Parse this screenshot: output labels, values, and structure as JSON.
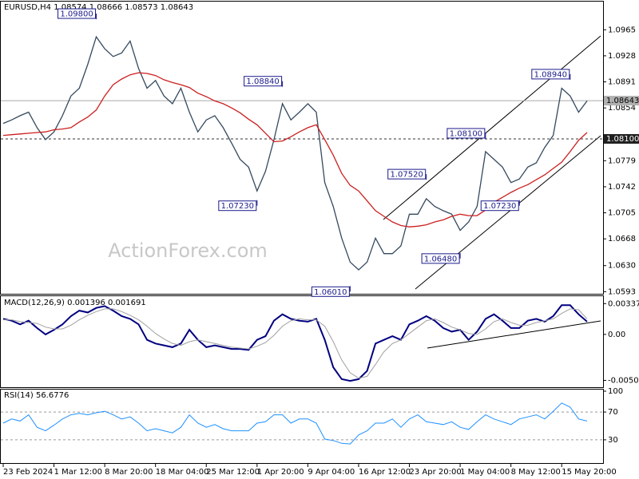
{
  "chart_data": [
    {
      "type": "line",
      "title": "EURUSD,H4 1.08574 1.08666 1.08573 1.08643",
      "watermark": "ActionForex.com",
      "ylim": [
        1.059,
        1.1005
      ],
      "yticks": [
        1.0965,
        1.0928,
        1.0891,
        1.0854,
        1.0779,
        1.0742,
        1.0705,
        1.0668,
        {
          "value": 1.063,
          "label": "1.0630"
        },
        1.0593
      ],
      "series": [
        {
          "color": "#34495e",
          "values": [
            1.0832,
            1.0837,
            1.0843,
            1.0848,
            1.0826,
            1.0809,
            1.082,
            1.0843,
            1.0871,
            1.0882,
            1.0916,
            1.0955,
            1.0938,
            1.0927,
            1.0932,
            1.0949,
            1.091,
            1.0882,
            1.0893,
            1.0871,
            1.086,
            1.0882,
            1.0848,
            1.082,
            1.0837,
            1.0843,
            1.0826,
            1.0804,
            1.0781,
            1.077,
            1.0736,
            1.0764,
            1.0809,
            1.086,
            1.0837,
            1.0848,
            1.086,
            1.0848,
            1.0748,
            1.0714,
            1.0669,
            1.0635,
            1.0624,
            1.0635,
            1.0669,
            1.0647,
            1.0647,
            1.0658,
            1.0703,
            1.0703,
            1.0725,
            1.0714,
            1.0708,
            1.0703,
            1.068,
            1.0692,
            1.0714,
            1.0792,
            1.0781,
            1.077,
            1.0748,
            1.0753,
            1.077,
            1.0776,
            1.0798,
            1.0815,
            1.0882,
            1.0871,
            1.0848,
            1.0864
          ]
        },
        {
          "color": "#cc1f1f",
          "values": [
            1.0815,
            1.0816,
            1.0817,
            1.0818,
            1.0819,
            1.082,
            1.0823,
            1.0824,
            1.0826,
            1.0834,
            1.0841,
            1.0851,
            1.0871,
            1.0887,
            1.0895,
            1.0901,
            1.0904,
            1.0903,
            1.09,
            1.0894,
            1.089,
            1.0887,
            1.0883,
            1.0875,
            1.087,
            1.0864,
            1.086,
            1.0854,
            1.0847,
            1.0838,
            1.083,
            1.0818,
            1.0806,
            1.0807,
            1.0813,
            1.082,
            1.0826,
            1.083,
            1.0809,
            1.0787,
            1.0761,
            1.0744,
            1.0736,
            1.0722,
            1.0708,
            1.07,
            1.0692,
            1.0687,
            1.0685,
            1.0686,
            1.0688,
            1.0692,
            1.0695,
            1.07,
            1.0703,
            1.0701,
            1.0701,
            1.0709,
            1.072,
            1.0727,
            1.0734,
            1.074,
            1.0745,
            1.0752,
            1.0759,
            1.0768,
            1.0777,
            1.0792,
            1.0808,
            1.0819
          ]
        }
      ],
      "annotations": [
        {
          "label": "1.09800",
          "value": 1.098,
          "index": 11
        },
        {
          "label": "1.08840",
          "value": 1.0884,
          "index": 33
        },
        {
          "label": "1.07230",
          "value": 1.0723,
          "index": 30
        },
        {
          "label": "1.06010",
          "value": 1.0601,
          "index": 41
        },
        {
          "label": "1.07520",
          "value": 1.0752,
          "index": 50
        },
        {
          "label": "1.06480",
          "value": 1.0648,
          "index": 54
        },
        {
          "label": "1.08100",
          "value": 1.081,
          "index": 57
        },
        {
          "label": "1.07230",
          "value": 1.0723,
          "index": 61
        },
        {
          "label": "1.08940",
          "value": 1.0894,
          "index": 67
        }
      ],
      "levels": [
        {
          "value": 1.08643,
          "label": "1.08643",
          "line": "solid",
          "color": "#b0b0b0"
        },
        {
          "value": 1.081,
          "label": "1.08100",
          "line": "dashed",
          "color": "#202020"
        }
      ]
    },
    {
      "type": "line",
      "title": "MACD(12,26,9) 0.001396 0.001691",
      "ylim": [
        -0.0057,
        0.0041
      ],
      "yticks": [
        0.003375,
        {
          "value": 0,
          "label": "0.00"
        },
        -0.00504
      ],
      "series": [
        {
          "color": "#000080",
          "width": 2,
          "values": [
            0.0017,
            0.0015,
            0.0011,
            0.0015,
            0.0007,
            0,
            0.0005,
            0.0011,
            0.002,
            0.0026,
            0.0024,
            0.0029,
            0.0031,
            0.0026,
            0.002,
            0.0017,
            0.0011,
            -0.0006,
            -0.001,
            -0.0012,
            -0.0014,
            -0.001,
            0.0005,
            -0.0006,
            -0.0014,
            -0.0012,
            -0.0014,
            -0.0016,
            -0.0016,
            -0.0017,
            -0.0006,
            -0.0002,
            0.0015,
            0.0022,
            0.0017,
            0.0015,
            0.0014,
            0.0017,
            -0.0006,
            -0.0036,
            -0.0049,
            -0.0051,
            -0.0049,
            -0.004,
            -0.001,
            -0.0006,
            -0.0002,
            -0.0006,
            0.0011,
            0.0015,
            0.002,
            0.0015,
            0.0007,
            0.0003,
            0.0005,
            -0.0006,
            0.0003,
            0.0017,
            0.0022,
            0.0015,
            0.0007,
            0.0007,
            0.0015,
            0.0017,
            0.0014,
            0.002,
            0.0032,
            0.0032,
            0.0022,
            0.0014
          ]
        },
        {
          "color": "#a0a0a0",
          "width": 1,
          "values": [
            0.0016,
            0.0016,
            0.0014,
            0.0013,
            0.0012,
            0.0008,
            0.0006,
            0.0006,
            0.001,
            0.0016,
            0.0021,
            0.0025,
            0.0028,
            0.0028,
            0.0025,
            0.0021,
            0.0016,
            0.0009,
            0.0001,
            -0.0005,
            -0.001,
            -0.0012,
            -0.0008,
            -0.0006,
            -0.0008,
            -0.001,
            -0.0012,
            -0.0014,
            -0.0015,
            -0.0016,
            -0.0013,
            -0.0009,
            -0.0001,
            0.0009,
            0.0015,
            0.0017,
            0.0016,
            0.0016,
            0.0009,
            -0.0008,
            -0.0028,
            -0.0042,
            -0.0048,
            -0.0046,
            -0.0033,
            -0.0019,
            -0.001,
            -0.0006,
            0.0001,
            0.0008,
            0.0015,
            0.0017,
            0.0013,
            0.0008,
            0.0005,
            0.0001,
            0,
            0.0006,
            0.0014,
            0.0017,
            0.0013,
            0.001,
            0.001,
            0.0013,
            0.0015,
            0.0017,
            0.0023,
            0.0028,
            0.0027,
            0.0017
          ]
        }
      ]
    },
    {
      "type": "line",
      "title": "RSI(14) 56.6776",
      "ylim": [
        0,
        100
      ],
      "yticks": [
        100,
        70,
        30
      ],
      "grid": true,
      "x": [
        "23 Feb 2024",
        null,
        null,
        null,
        null,
        null,
        "1 Mar 12:00",
        null,
        null,
        null,
        null,
        null,
        "8 Mar 20:00",
        null,
        null,
        null,
        null,
        null,
        "18 Mar 04:00",
        null,
        null,
        null,
        null,
        null,
        "25 Mar 12:00",
        null,
        null,
        null,
        null,
        null,
        "1 Apr 20:00",
        null,
        null,
        null,
        null,
        null,
        "9 Apr 04:00",
        null,
        null,
        null,
        null,
        null,
        "16 Apr 12:00",
        null,
        null,
        null,
        null,
        null,
        "23 Apr 20:00",
        null,
        null,
        null,
        null,
        null,
        "1 May 04:00",
        null,
        null,
        null,
        null,
        null,
        "8 May 12:00",
        null,
        null,
        null,
        null,
        null,
        "15 May 20:00",
        null,
        null,
        null
      ],
      "series": [
        {
          "color": "#1e90ff",
          "width": 1,
          "values": [
            54,
            60,
            57,
            66,
            48,
            43,
            51,
            60,
            66,
            68,
            66,
            69,
            71,
            66,
            60,
            63,
            54,
            43,
            46,
            43,
            40,
            48,
            66,
            54,
            48,
            52,
            46,
            43,
            43,
            43,
            54,
            56,
            66,
            66,
            54,
            60,
            60,
            54,
            31,
            29,
            25,
            24,
            37,
            43,
            54,
            54,
            60,
            48,
            60,
            66,
            56,
            54,
            52,
            56,
            48,
            45,
            56,
            66,
            60,
            56,
            52,
            60,
            63,
            66,
            60,
            71,
            83,
            77,
            60,
            57
          ]
        }
      ]
    }
  ]
}
